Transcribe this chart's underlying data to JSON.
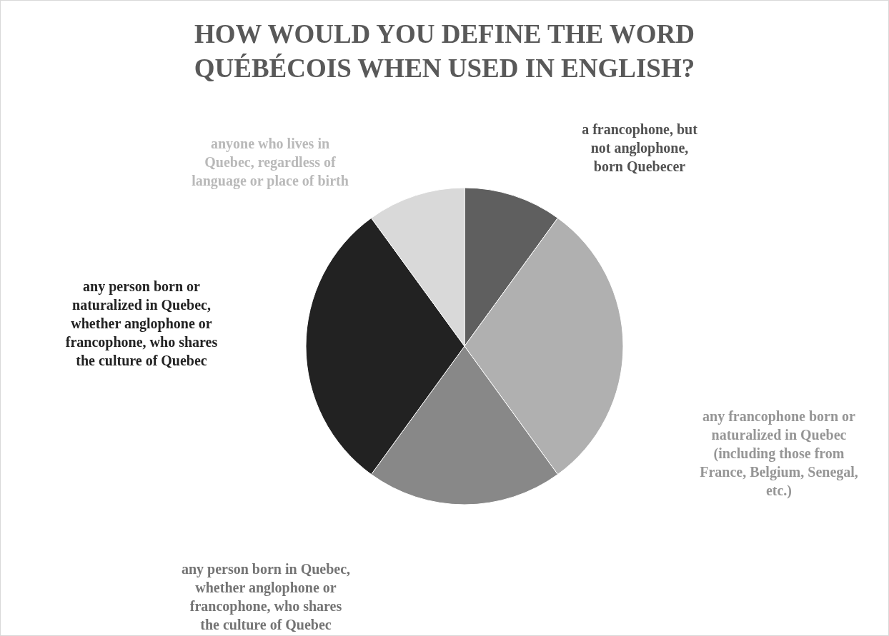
{
  "chart_data": {
    "type": "pie",
    "title": "HOW WOULD YOU DEFINE THE WORD QUÉBÉCOIS WHEN USED IN ENGLISH?",
    "categories": [
      "a francophone, but not anglophone, born Quebecer",
      "any francophone born or naturalized in Quebec (including those from France, Belgium, Senegal, etc.)",
      "any person born in Quebec, whether anglophone or francophone, who shares the culture of Quebec",
      "any person born or naturalized in Quebec, whether anglophone or francophone, who shares the culture of Quebec",
      "anyone who lives in Quebec, regardless of language or place of birth"
    ],
    "values": [
      10,
      30,
      20,
      30,
      10
    ],
    "colors": [
      "#5f5f5f",
      "#b0b0b0",
      "#888888",
      "#222222",
      "#d9d9d9"
    ]
  }
}
